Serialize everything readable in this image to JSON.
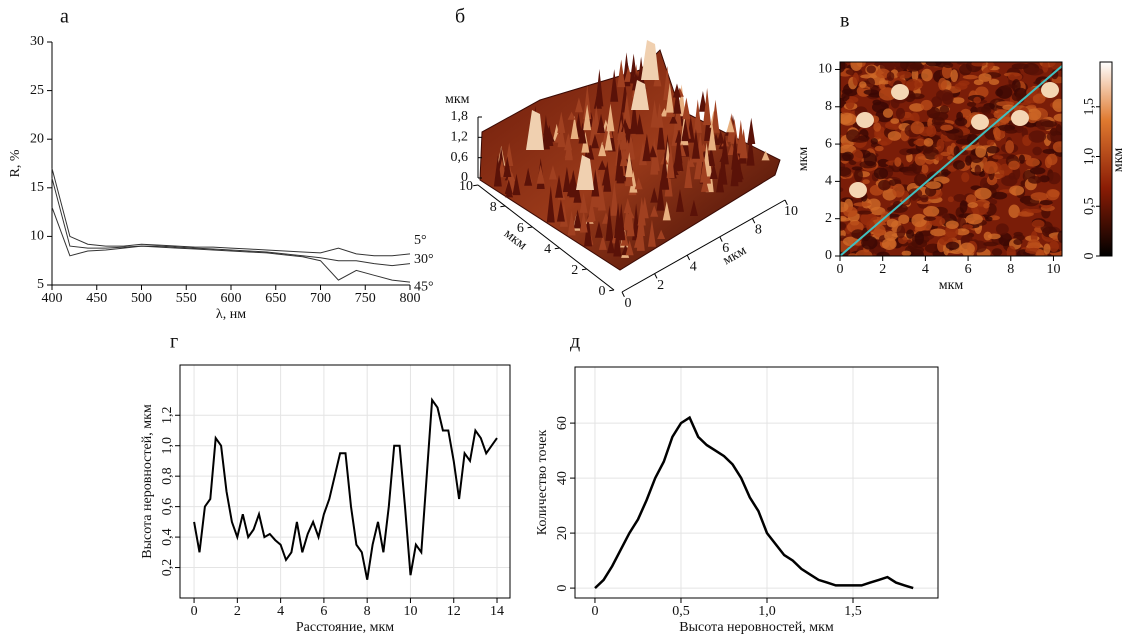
{
  "chart_data": [
    {
      "type": "line",
      "label": "а",
      "xlabel": "λ, нм",
      "ylabel": "R, %",
      "xlim": [
        400,
        800
      ],
      "ylim": [
        5,
        30
      ],
      "xticks": [
        400,
        450,
        500,
        550,
        600,
        650,
        700,
        750,
        800
      ],
      "yticks": [
        5,
        10,
        15,
        20,
        25,
        30
      ],
      "x": [
        400,
        420,
        440,
        460,
        480,
        500,
        520,
        540,
        560,
        580,
        600,
        620,
        640,
        660,
        680,
        700,
        720,
        740,
        760,
        780,
        800
      ],
      "series": [
        {
          "name": "5°",
          "color": "#333333",
          "values": [
            17,
            10,
            9.2,
            9,
            9,
            9.2,
            9.1,
            9,
            8.9,
            8.9,
            8.8,
            8.7,
            8.6,
            8.5,
            8.4,
            8.3,
            8.8,
            8.2,
            8,
            8,
            8.2
          ]
        },
        {
          "name": "30°",
          "color": "#333333",
          "values": [
            16,
            9,
            8.8,
            8.8,
            8.9,
            9,
            9,
            8.9,
            8.8,
            8.7,
            8.6,
            8.5,
            8.4,
            8.2,
            8,
            7.8,
            7.5,
            7.5,
            7.2,
            7,
            7.2
          ]
        },
        {
          "name": "45°",
          "color": "#333333",
          "values": [
            13,
            8,
            8.5,
            8.6,
            8.8,
            9,
            8.9,
            8.8,
            8.7,
            8.6,
            8.5,
            8.4,
            8.3,
            8.1,
            7.9,
            7.5,
            5.5,
            6.5,
            6,
            5.5,
            5.3
          ]
        }
      ]
    },
    {
      "type": "surface",
      "label": "б",
      "zlabel": "мкм",
      "xlabel": "мкм",
      "ylabel": "мкм",
      "xlim": [
        0,
        10
      ],
      "ylim": [
        0,
        10
      ],
      "zlim": [
        0,
        1.8
      ],
      "xticks": [
        0,
        2,
        4,
        6,
        8,
        10
      ],
      "yticks": [
        0,
        2,
        4,
        6,
        8,
        10
      ],
      "zticks": [
        0,
        {
          "value": 0.6,
          "label": "0,6"
        },
        {
          "value": 1.2,
          "label": "1,2"
        },
        {
          "value": 1.8,
          "label": "1,8"
        }
      ]
    },
    {
      "type": "image",
      "label": "в",
      "xlabel": "мкм",
      "ylabel": "мкм",
      "xlim": [
        0,
        10.4
      ],
      "ylim": [
        0,
        10.4
      ],
      "xticks": [
        0,
        2,
        4,
        6,
        8,
        10
      ],
      "yticks": [
        0,
        2,
        4,
        6,
        8,
        10
      ],
      "clim": [
        0,
        1.95
      ],
      "clabel": "мкм",
      "cticks": [
        0,
        {
          "value": 0.5,
          "label": "0,5"
        },
        {
          "value": 1.0,
          "label": "1,0"
        },
        {
          "value": 1.5,
          "label": "1,5"
        }
      ]
    },
    {
      "type": "line",
      "label": "г",
      "xlabel": "Расстояние, мкм",
      "ylabel": "Высота неровностей, мкм",
      "grid": true,
      "xlim": [
        -0.65,
        14.6
      ],
      "ylim": [
        0,
        1.53
      ],
      "xticks": [
        0,
        2,
        4,
        6,
        8,
        10,
        12,
        14
      ],
      "yticks": [
        {
          "value": 0.2,
          "label": "0,2"
        },
        {
          "value": 0.4,
          "label": "0,4"
        },
        {
          "value": 0.6,
          "label": "0,6"
        },
        {
          "value": 0.8,
          "label": "0,8"
        },
        {
          "value": 1.0,
          "label": "1,0"
        },
        {
          "value": 1.2,
          "label": "1,2"
        }
      ],
      "x": [
        0,
        0.25,
        0.5,
        0.75,
        1,
        1.25,
        1.5,
        1.75,
        2,
        2.25,
        2.5,
        2.75,
        3,
        3.25,
        3.5,
        3.75,
        4,
        4.25,
        4.5,
        4.75,
        5,
        5.25,
        5.5,
        5.75,
        6,
        6.25,
        6.5,
        6.75,
        7,
        7.25,
        7.5,
        7.75,
        8,
        8.25,
        8.5,
        8.75,
        9,
        9.25,
        9.5,
        9.75,
        10,
        10.25,
        10.5,
        10.75,
        11,
        11.25,
        11.5,
        11.75,
        12,
        12.25,
        12.5,
        12.75,
        13,
        13.25,
        13.5,
        13.75,
        14
      ],
      "series": [
        {
          "color": "#000000",
          "values": [
            0.5,
            0.3,
            0.6,
            0.65,
            1.05,
            1.0,
            0.7,
            0.5,
            0.4,
            0.55,
            0.4,
            0.45,
            0.55,
            0.4,
            0.42,
            0.38,
            0.35,
            0.25,
            0.3,
            0.5,
            0.3,
            0.42,
            0.5,
            0.4,
            0.55,
            0.65,
            0.8,
            0.95,
            0.95,
            0.6,
            0.35,
            0.3,
            0.12,
            0.35,
            0.5,
            0.3,
            0.6,
            1.0,
            1.0,
            0.6,
            0.15,
            0.35,
            0.3,
            0.8,
            1.3,
            1.25,
            1.1,
            1.1,
            0.9,
            0.65,
            0.95,
            0.9,
            1.1,
            1.05,
            0.95,
            1.0,
            1.05
          ]
        }
      ]
    },
    {
      "type": "line",
      "label": "д",
      "xlabel": "Высота неровностей, мкм",
      "ylabel": "Количество точек",
      "grid": true,
      "xlim": [
        -0.116,
        1.994
      ],
      "ylim": [
        -3.6,
        80.4
      ],
      "xticks": [
        0,
        {
          "value": 0.5,
          "label": "0,5"
        },
        {
          "value": 1.0,
          "label": "1,0"
        },
        {
          "value": 1.5,
          "label": "1,5"
        }
      ],
      "yticks": [
        0,
        20,
        40,
        60
      ],
      "x": [
        0,
        0.05,
        0.1,
        0.15,
        0.2,
        0.25,
        0.3,
        0.35,
        0.4,
        0.45,
        0.5,
        0.55,
        0.6,
        0.65,
        0.7,
        0.75,
        0.8,
        0.85,
        0.9,
        0.95,
        1.0,
        1.05,
        1.1,
        1.15,
        1.2,
        1.25,
        1.3,
        1.35,
        1.4,
        1.45,
        1.5,
        1.55,
        1.6,
        1.65,
        1.7,
        1.75,
        1.8,
        1.85
      ],
      "series": [
        {
          "color": "#000000",
          "values": [
            0,
            3,
            8,
            14,
            20,
            25,
            32,
            40,
            46,
            55,
            60,
            62,
            55,
            52,
            50,
            48,
            45,
            40,
            33,
            28,
            20,
            16,
            12,
            10,
            7,
            5,
            3,
            2,
            1,
            1,
            1,
            1,
            2,
            3,
            4,
            2,
            1,
            0
          ]
        }
      ]
    }
  ]
}
